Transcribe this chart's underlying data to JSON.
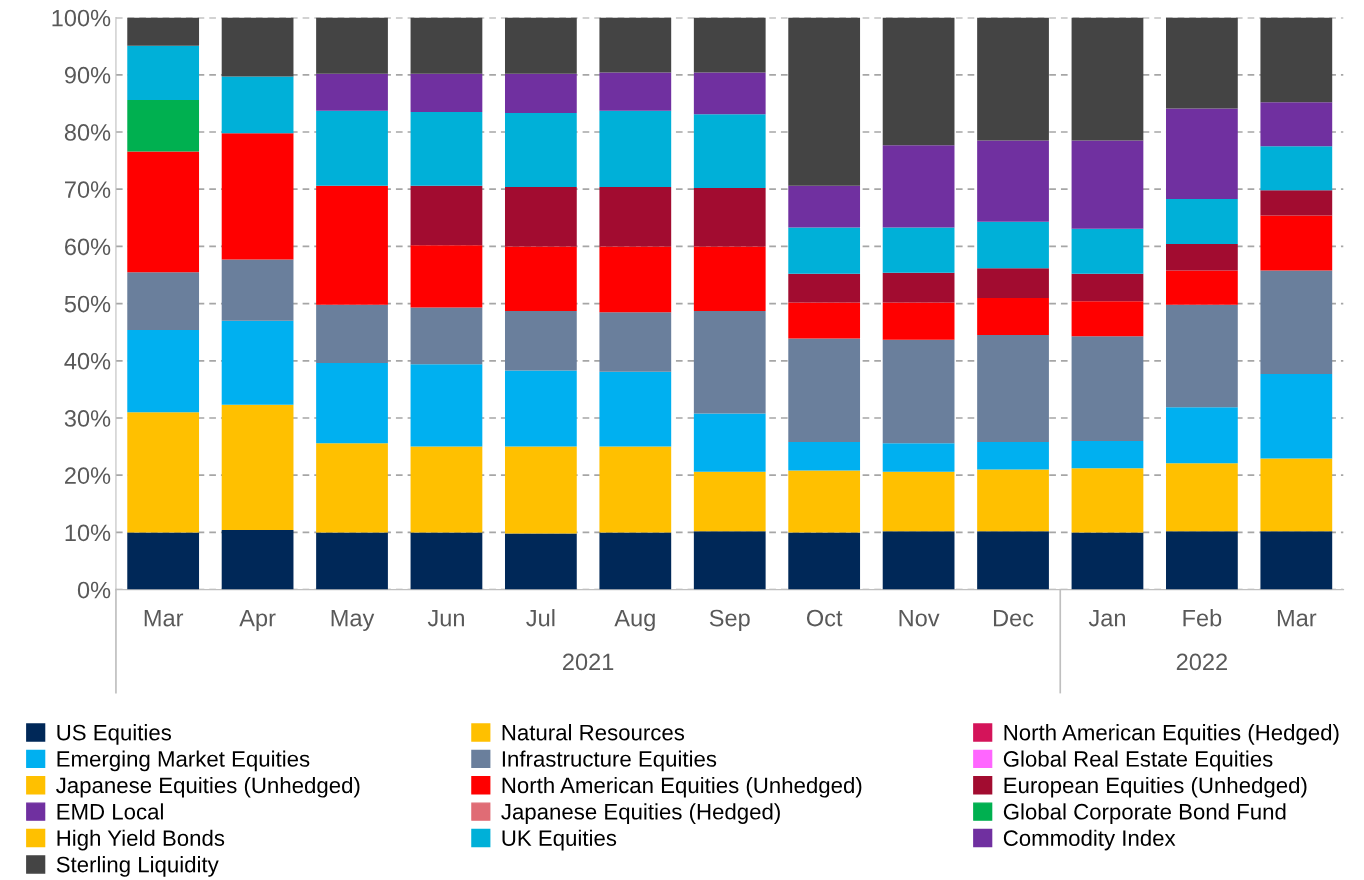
{
  "chart_data": {
    "type": "bar",
    "stacked": true,
    "categories": [
      "Mar",
      "Apr",
      "May",
      "Jun",
      "Jul",
      "Aug",
      "Sep",
      "Oct",
      "Nov",
      "Dec",
      "Jan",
      "Feb",
      "Mar"
    ],
    "annotations": [
      "2021",
      "2022"
    ],
    "ylim": [
      0,
      100
    ],
    "yticks": [
      {
        "value": 0,
        "label": "0%"
      },
      {
        "value": 10,
        "label": "10%"
      },
      {
        "value": 20,
        "label": "20%"
      },
      {
        "value": 30,
        "label": "30%"
      },
      {
        "value": 40,
        "label": "40%"
      },
      {
        "value": 50,
        "label": "50%"
      },
      {
        "value": 60,
        "label": "60%"
      },
      {
        "value": 70,
        "label": "70%"
      },
      {
        "value": 80,
        "label": "80%"
      },
      {
        "value": 90,
        "label": "90%"
      },
      {
        "value": 100,
        "label": "100%"
      }
    ],
    "grid": "y",
    "legend": "bottom",
    "series": [
      {
        "name": "US Equities",
        "color": "#002858",
        "values": [
          10.0,
          10.4,
          10.0,
          10.0,
          9.8,
          10.0,
          10.2,
          10.0,
          10.2,
          10.2,
          10.0,
          10.2,
          10.2
        ]
      },
      {
        "name": "Natural Resources",
        "color": "#ffc000",
        "values": [
          21.0,
          21.9,
          15.6,
          15.0,
          15.2,
          15.0,
          10.4,
          10.8,
          10.4,
          10.8,
          11.2,
          11.9,
          12.7
        ]
      },
      {
        "name": "North American Equities (Hedged)",
        "color": "#d4145a",
        "values": [
          0,
          0,
          0,
          0,
          0,
          0,
          0,
          0,
          0,
          0,
          0,
          0,
          0
        ]
      },
      {
        "name": "Emerging Market Equities",
        "color": "#00b0f0",
        "values": [
          14.4,
          14.7,
          14.0,
          14.4,
          13.3,
          13.1,
          10.2,
          5.0,
          5.0,
          4.8,
          4.8,
          9.8,
          14.8
        ]
      },
      {
        "name": "Infrastructure Equities",
        "color": "#6a7f9c",
        "values": [
          10.1,
          10.7,
          10.2,
          9.9,
          10.4,
          10.4,
          17.9,
          18.1,
          18.1,
          18.7,
          18.3,
          17.9,
          18.1
        ]
      },
      {
        "name": "Global Real Estate Equities",
        "color": "#ff66ff",
        "values": [
          0,
          0,
          0,
          0,
          0,
          0,
          0,
          0,
          0,
          0,
          0,
          0,
          0
        ]
      },
      {
        "name": "Japanese Equities (Unhedged)",
        "color": "#ffc000",
        "values": [
          0,
          0,
          0,
          0,
          0,
          0,
          0,
          0,
          0,
          0,
          0,
          0,
          0
        ]
      },
      {
        "name": "North American Equities (Unhedged)",
        "color": "#ff0000",
        "values": [
          21.1,
          22.1,
          20.8,
          10.9,
          11.3,
          11.5,
          11.3,
          6.3,
          6.5,
          6.5,
          6.1,
          6.0,
          9.6
        ]
      },
      {
        "name": "European Equities (Unhedged)",
        "color": "#a20c30",
        "values": [
          0,
          0,
          0,
          10.4,
          10.4,
          10.4,
          10.2,
          5.0,
          5.2,
          5.2,
          4.8,
          4.6,
          4.4
        ]
      },
      {
        "name": "EMD Local",
        "color": "#7030a0",
        "values": [
          0,
          0,
          0,
          0,
          0,
          0,
          0,
          0,
          0,
          0,
          0,
          0,
          0
        ]
      },
      {
        "name": "Japanese Equities (Hedged)",
        "color": "#e06c75",
        "values": [
          0,
          0,
          0,
          0,
          0,
          0,
          0,
          0,
          0,
          0,
          0,
          0,
          0
        ]
      },
      {
        "name": "Global Corporate Bond Fund",
        "color": "#00b050",
        "values": [
          9.0,
          0,
          0,
          0,
          0,
          0,
          0,
          0,
          0,
          0,
          0,
          0,
          0
        ]
      },
      {
        "name": "High Yield Bonds",
        "color": "#ffc000",
        "values": [
          0,
          0,
          0,
          0,
          0,
          0,
          0,
          0,
          0,
          0,
          0,
          0,
          0
        ]
      },
      {
        "name": "UK Equities",
        "color": "#00b0d8",
        "values": [
          9.5,
          9.9,
          13.1,
          12.9,
          12.9,
          13.3,
          12.9,
          8.1,
          7.9,
          8.1,
          7.9,
          7.9,
          7.7
        ]
      },
      {
        "name": "Commodity Index",
        "color": "#7030a0",
        "values": [
          0,
          0,
          6.5,
          6.7,
          6.9,
          6.7,
          7.3,
          7.3,
          14.4,
          14.2,
          15.4,
          15.8,
          7.7
        ]
      },
      {
        "name": "Sterling Liquidity",
        "color": "#444444",
        "values": [
          4.9,
          10.3,
          9.8,
          9.8,
          9.8,
          9.6,
          9.6,
          29.4,
          22.3,
          21.5,
          21.5,
          15.9,
          14.8
        ]
      }
    ]
  }
}
